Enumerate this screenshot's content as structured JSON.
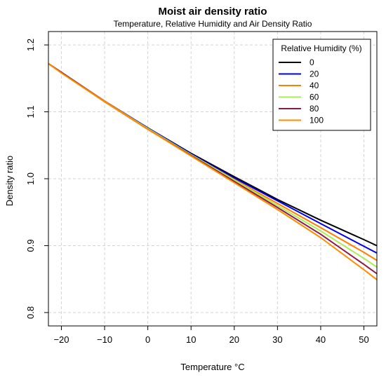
{
  "chart_data": {
    "type": "line",
    "title": "Moist air density ratio",
    "subtitle": "Temperature, Relative Humidity and Air Density Ratio",
    "xlabel": "Temperature °C",
    "ylabel": "Density ratio",
    "xlim": [
      -23,
      53
    ],
    "ylim": [
      0.78,
      1.22
    ],
    "x_ticks": [
      -20,
      -10,
      0,
      10,
      20,
      30,
      40,
      50
    ],
    "y_ticks": [
      0.8,
      0.9,
      1.0,
      1.1,
      1.2
    ],
    "grid": true,
    "legend_title": "Relative Humidity (%)",
    "legend_position": "top-right",
    "x": [
      -23,
      -20,
      -10,
      0,
      10,
      20,
      30,
      40,
      50,
      53
    ],
    "series": [
      {
        "name": "0",
        "color": "#000000",
        "values": [
          1.172,
          1.159,
          1.116,
          1.076,
          1.038,
          1.003,
          0.969,
          0.938,
          0.909,
          0.9
        ]
      },
      {
        "name": "20",
        "color": "#0000ee",
        "values": [
          1.172,
          1.159,
          1.116,
          1.076,
          1.037,
          1.001,
          0.967,
          0.933,
          0.899,
          0.889
        ]
      },
      {
        "name": "40",
        "color": "#ff7f00",
        "values": [
          1.172,
          1.159,
          1.116,
          1.075,
          1.036,
          0.999,
          0.963,
          0.927,
          0.89,
          0.878
        ]
      },
      {
        "name": "60",
        "color": "#aaee55",
        "values": [
          1.172,
          1.159,
          1.115,
          1.075,
          1.036,
          0.998,
          0.96,
          0.922,
          0.881,
          0.868
        ]
      },
      {
        "name": "80",
        "color": "#8b1a4a",
        "values": [
          1.172,
          1.159,
          1.115,
          1.074,
          1.035,
          0.996,
          0.957,
          0.917,
          0.872,
          0.858
        ]
      },
      {
        "name": "100",
        "color": "#ff8c00",
        "values": [
          1.172,
          1.158,
          1.115,
          1.074,
          1.034,
          0.994,
          0.954,
          0.912,
          0.864,
          0.849
        ]
      }
    ]
  }
}
